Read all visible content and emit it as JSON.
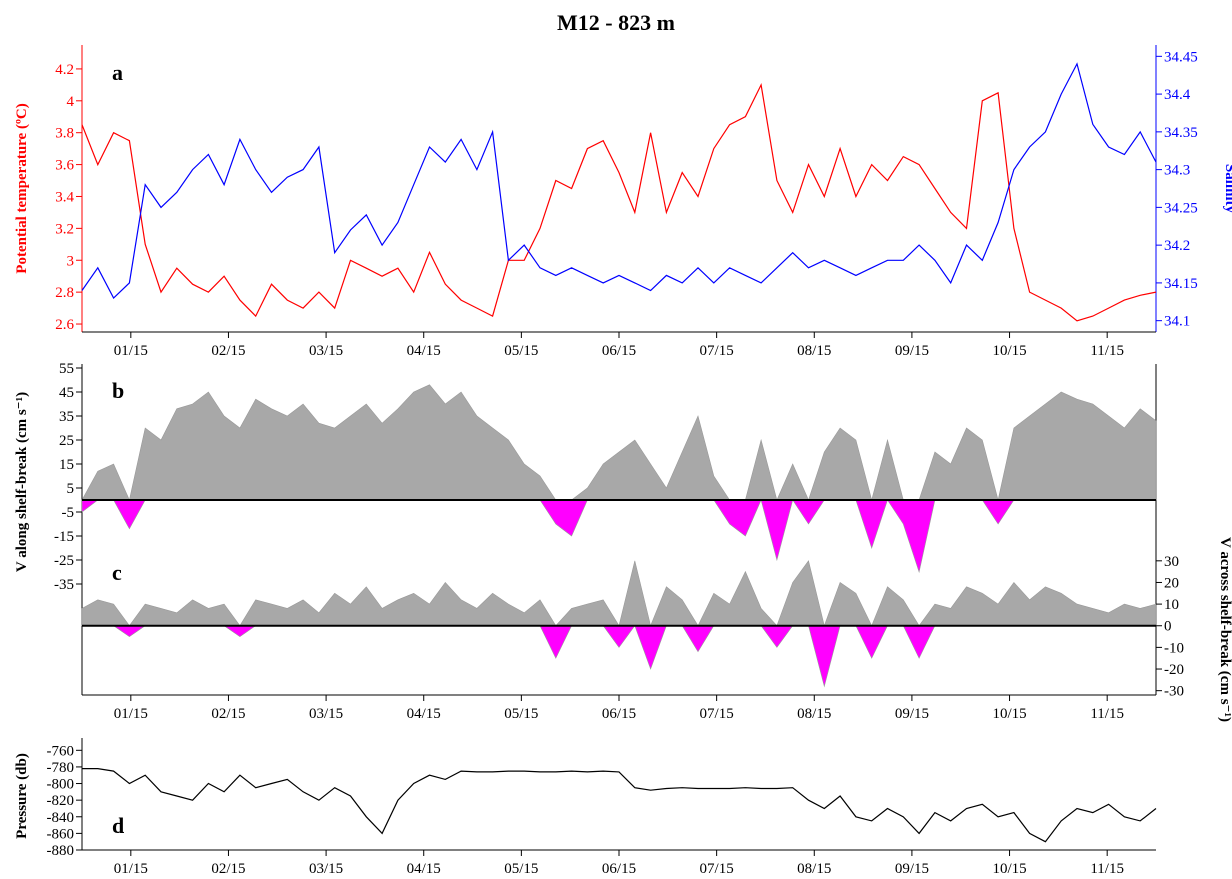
{
  "title": "M12 - 823 m",
  "colors": {
    "temperature": "#ff0000",
    "salinity": "#0000ff",
    "positive_fill": "#a8a8a8",
    "negative_fill": "#ff00ff",
    "axis": "#000000"
  },
  "month_ticks": [
    "01/15",
    "02/15",
    "03/15",
    "04/15",
    "05/15",
    "06/15",
    "07/15",
    "08/15",
    "09/15",
    "10/15",
    "11/15"
  ],
  "chart_data": [
    {
      "panel": "a",
      "type": "line",
      "ylabel_left": "Potential temperature (ºC)",
      "ylabel_right": "Salinity",
      "left_ticks": [
        "4.2",
        "4",
        "3.8",
        "3.6",
        "3.4",
        "3.2",
        "3",
        "2.8",
        "2.6"
      ],
      "right_ticks": [
        "34.45",
        "34.4",
        "34.35",
        "34.3",
        "34.25",
        "34.2",
        "34.15",
        "34.1"
      ],
      "left_ylim": [
        2.55,
        4.35
      ],
      "right_ylim": [
        34.085,
        34.465
      ],
      "series": [
        {
          "name": "temperature",
          "axis": "left",
          "x": [
            0,
            5,
            10,
            15,
            20,
            25,
            30,
            35,
            40,
            45,
            50,
            55,
            60,
            65,
            70,
            75,
            80,
            85,
            90,
            95,
            100,
            105,
            110,
            115,
            120,
            125,
            130,
            135,
            140,
            145,
            150,
            155,
            160,
            165,
            170,
            175,
            180,
            185,
            190,
            195,
            200,
            205,
            210,
            215,
            220,
            225,
            230,
            235,
            240,
            245,
            250,
            255,
            260,
            265,
            270,
            275,
            280,
            285,
            290,
            295,
            300,
            305,
            310,
            315,
            320,
            325,
            330,
            335,
            340
          ],
          "y": [
            3.85,
            3.6,
            3.8,
            3.75,
            3.1,
            2.8,
            2.95,
            2.85,
            2.8,
            2.9,
            2.75,
            2.65,
            2.85,
            2.75,
            2.7,
            2.8,
            2.7,
            3.0,
            2.95,
            2.9,
            2.95,
            2.8,
            3.05,
            2.85,
            2.75,
            2.7,
            2.65,
            3.0,
            3.0,
            3.2,
            3.5,
            3.45,
            3.7,
            3.75,
            3.55,
            3.3,
            3.8,
            3.3,
            3.55,
            3.4,
            3.7,
            3.85,
            3.9,
            4.1,
            3.5,
            3.3,
            3.6,
            3.4,
            3.7,
            3.4,
            3.6,
            3.5,
            3.65,
            3.6,
            3.45,
            3.3,
            3.2,
            4.0,
            4.05,
            3.2,
            2.8,
            2.75,
            2.7,
            2.62,
            2.65,
            2.7,
            2.75,
            2.78,
            2.8
          ]
        },
        {
          "name": "salinity",
          "axis": "right",
          "x": [
            0,
            5,
            10,
            15,
            20,
            25,
            30,
            35,
            40,
            45,
            50,
            55,
            60,
            65,
            70,
            75,
            80,
            85,
            90,
            95,
            100,
            105,
            110,
            115,
            120,
            125,
            130,
            135,
            140,
            145,
            150,
            155,
            160,
            165,
            170,
            175,
            180,
            185,
            190,
            195,
            200,
            205,
            210,
            215,
            220,
            225,
            230,
            235,
            240,
            245,
            250,
            255,
            260,
            265,
            270,
            275,
            280,
            285,
            290,
            295,
            300,
            305,
            310,
            315,
            320,
            325,
            330,
            335,
            340
          ],
          "y": [
            34.14,
            34.17,
            34.13,
            34.15,
            34.28,
            34.25,
            34.27,
            34.3,
            34.32,
            34.28,
            34.34,
            34.3,
            34.27,
            34.29,
            34.3,
            34.33,
            34.19,
            34.22,
            34.24,
            34.2,
            34.23,
            34.28,
            34.33,
            34.31,
            34.34,
            34.3,
            34.35,
            34.18,
            34.2,
            34.17,
            34.16,
            34.17,
            34.16,
            34.15,
            34.16,
            34.15,
            34.14,
            34.16,
            34.15,
            34.17,
            34.15,
            34.17,
            34.16,
            34.15,
            34.17,
            34.19,
            34.17,
            34.18,
            34.17,
            34.16,
            34.17,
            34.18,
            34.18,
            34.2,
            34.18,
            34.15,
            34.2,
            34.18,
            34.23,
            34.3,
            34.33,
            34.35,
            34.4,
            34.44,
            34.36,
            34.33,
            34.32,
            34.35,
            34.31
          ]
        }
      ]
    },
    {
      "panel": "b",
      "type": "area",
      "ylabel": "V along shelf-break (cm s⁻¹)",
      "ticks": [
        "55",
        "45",
        "35",
        "25",
        "15",
        "5",
        "-5",
        "-15",
        "-25",
        "-35"
      ],
      "ylim": [
        -40,
        55
      ],
      "x": [
        0,
        5,
        10,
        15,
        20,
        25,
        30,
        35,
        40,
        45,
        50,
        55,
        60,
        65,
        70,
        75,
        80,
        85,
        90,
        95,
        100,
        105,
        110,
        115,
        120,
        125,
        130,
        135,
        140,
        145,
        150,
        155,
        160,
        165,
        170,
        175,
        180,
        185,
        190,
        195,
        200,
        205,
        210,
        215,
        220,
        225,
        230,
        235,
        240,
        245,
        250,
        255,
        260,
        265,
        270,
        275,
        280,
        285,
        290,
        295,
        300,
        305,
        310,
        315,
        320,
        325,
        330,
        335,
        340
      ],
      "values": [
        -5,
        12,
        15,
        -12,
        30,
        25,
        38,
        40,
        45,
        35,
        30,
        42,
        38,
        35,
        40,
        32,
        30,
        35,
        40,
        32,
        38,
        45,
        48,
        40,
        45,
        35,
        30,
        25,
        15,
        10,
        -10,
        -15,
        5,
        15,
        20,
        25,
        15,
        5,
        20,
        35,
        10,
        -10,
        -15,
        25,
        -25,
        15,
        -10,
        20,
        30,
        25,
        -20,
        25,
        -10,
        -30,
        20,
        15,
        30,
        25,
        -10,
        30,
        35,
        40,
        45,
        42,
        40,
        35,
        30,
        38,
        33
      ]
    },
    {
      "panel": "c",
      "type": "area",
      "ylabel": "V across shelf-break (cm s⁻¹)",
      "ticks": [
        "30",
        "20",
        "10",
        "0",
        "-10",
        "-20",
        "-30"
      ],
      "ylim": [
        -32,
        35
      ],
      "x": [
        0,
        5,
        10,
        15,
        20,
        25,
        30,
        35,
        40,
        45,
        50,
        55,
        60,
        65,
        70,
        75,
        80,
        85,
        90,
        95,
        100,
        105,
        110,
        115,
        120,
        125,
        130,
        135,
        140,
        145,
        150,
        155,
        160,
        165,
        170,
        175,
        180,
        185,
        190,
        195,
        200,
        205,
        210,
        215,
        220,
        225,
        230,
        235,
        240,
        245,
        250,
        255,
        260,
        265,
        270,
        275,
        280,
        285,
        290,
        295,
        300,
        305,
        310,
        315,
        320,
        325,
        330,
        335,
        340
      ],
      "values": [
        8,
        12,
        10,
        -5,
        10,
        8,
        6,
        12,
        8,
        10,
        -5,
        12,
        10,
        8,
        12,
        6,
        15,
        10,
        18,
        8,
        12,
        15,
        10,
        20,
        12,
        8,
        15,
        10,
        6,
        12,
        -15,
        8,
        10,
        12,
        -10,
        30,
        -20,
        18,
        12,
        -12,
        15,
        10,
        25,
        8,
        -10,
        20,
        30,
        -28,
        20,
        15,
        -15,
        18,
        12,
        -15,
        10,
        8,
        18,
        15,
        10,
        20,
        12,
        18,
        15,
        10,
        8,
        6,
        10,
        8,
        10
      ]
    },
    {
      "panel": "d",
      "type": "line",
      "ylabel": "Pressure (db)",
      "ticks": [
        "-760",
        "-780",
        "-800",
        "-820",
        "-840",
        "-860",
        "-880"
      ],
      "ylim": [
        -880,
        -750
      ],
      "x": [
        0,
        5,
        10,
        15,
        20,
        25,
        30,
        35,
        40,
        45,
        50,
        55,
        60,
        65,
        70,
        75,
        80,
        85,
        90,
        95,
        100,
        105,
        110,
        115,
        120,
        125,
        130,
        135,
        140,
        145,
        150,
        155,
        160,
        165,
        170,
        175,
        180,
        185,
        190,
        195,
        200,
        205,
        210,
        215,
        220,
        225,
        230,
        235,
        240,
        245,
        250,
        255,
        260,
        265,
        270,
        275,
        280,
        285,
        290,
        295,
        300,
        305,
        310,
        315,
        320,
        325,
        330,
        335,
        340
      ],
      "values": [
        -782,
        -782,
        -785,
        -800,
        -790,
        -810,
        -815,
        -820,
        -800,
        -810,
        -790,
        -805,
        -800,
        -795,
        -810,
        -820,
        -805,
        -815,
        -840,
        -860,
        -820,
        -800,
        -790,
        -795,
        -785,
        -786,
        -786,
        -785,
        -785,
        -786,
        -786,
        -785,
        -786,
        -785,
        -786,
        -805,
        -808,
        -806,
        -805,
        -806,
        -806,
        -806,
        -805,
        -806,
        -806,
        -805,
        -820,
        -830,
        -815,
        -840,
        -845,
        -830,
        -840,
        -860,
        -835,
        -845,
        -830,
        -825,
        -840,
        -835,
        -860,
        -870,
        -845,
        -830,
        -835,
        -825,
        -840,
        -845,
        -830
      ]
    }
  ]
}
